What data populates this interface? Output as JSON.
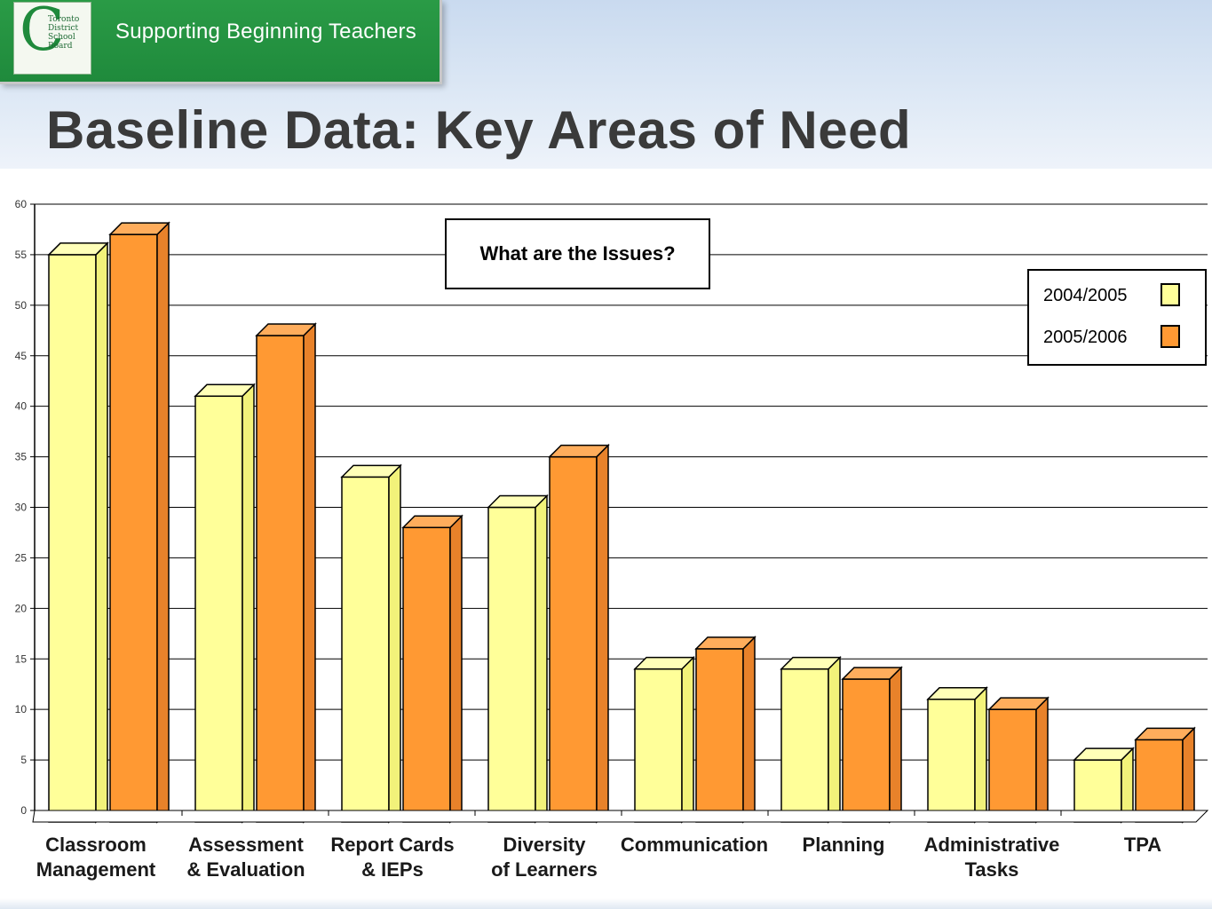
{
  "banner": {
    "logo_text": "Toronto\nDistrict\nSchool\nBoard",
    "title": "Supporting Beginning Teachers"
  },
  "page_title": "Baseline Data:  Key Areas of Need",
  "annotation": "What are the Issues?",
  "colors": {
    "series_2004": "#ffff99",
    "series_2005": "#ff9933",
    "grid": "#000000",
    "shadow": "#4d4d4d"
  },
  "chart_data": {
    "type": "bar",
    "categories": [
      [
        "Classroom",
        "Management"
      ],
      [
        "Assessment",
        "& Evaluation"
      ],
      [
        "Report Cards",
        "& IEPs"
      ],
      [
        "Diversity",
        "of Learners"
      ],
      [
        "Communication"
      ],
      [
        "Planning"
      ],
      [
        "Administrative",
        "Tasks"
      ],
      [
        "TPA"
      ]
    ],
    "series": [
      {
        "name": "2004/2005",
        "values": [
          55,
          41,
          33,
          30,
          14,
          14,
          11,
          5
        ]
      },
      {
        "name": "2005/2006",
        "values": [
          57,
          47,
          28,
          35,
          16,
          13,
          10,
          7
        ]
      }
    ],
    "ylim": [
      0,
      60
    ],
    "yticks": [
      0,
      5,
      10,
      15,
      20,
      25,
      30,
      35,
      40,
      45,
      50,
      55,
      60
    ],
    "grid": true,
    "legend": "top-right",
    "style": "3d-bar"
  }
}
